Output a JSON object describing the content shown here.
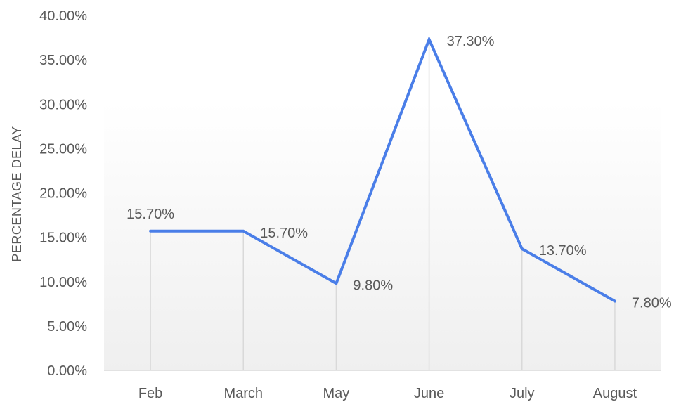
{
  "chart_data": {
    "type": "line",
    "title": "",
    "xlabel": "",
    "ylabel": "PERCENTAGE DELAY",
    "categories": [
      "Feb",
      "March",
      "May",
      "June",
      "July",
      "August"
    ],
    "series": [
      {
        "values": [
          15.7,
          15.7,
          9.8,
          37.3,
          13.7,
          7.8
        ],
        "data_labels": [
          "15.70%",
          "15.70%",
          "9.80%",
          "37.30%",
          "13.70%",
          "7.80%"
        ],
        "color": "#4a7ee8"
      }
    ],
    "ylim": [
      0,
      40
    ],
    "y_ticks": [
      0,
      5,
      10,
      15,
      20,
      25,
      30,
      35,
      40
    ],
    "y_tick_labels": [
      "0.00%",
      "5.00%",
      "10.00%",
      "15.00%",
      "20.00%",
      "25.00%",
      "30.00%",
      "35.00%",
      "40.00%"
    ],
    "drop_lines": true,
    "grid": false,
    "legend": "none",
    "colors": {
      "line": "#4a7ee8",
      "drop_line": "#d9d9d9",
      "axis": "#d9d9d9",
      "text": "#595959",
      "background_gradient_bottom": "#efefef"
    }
  }
}
